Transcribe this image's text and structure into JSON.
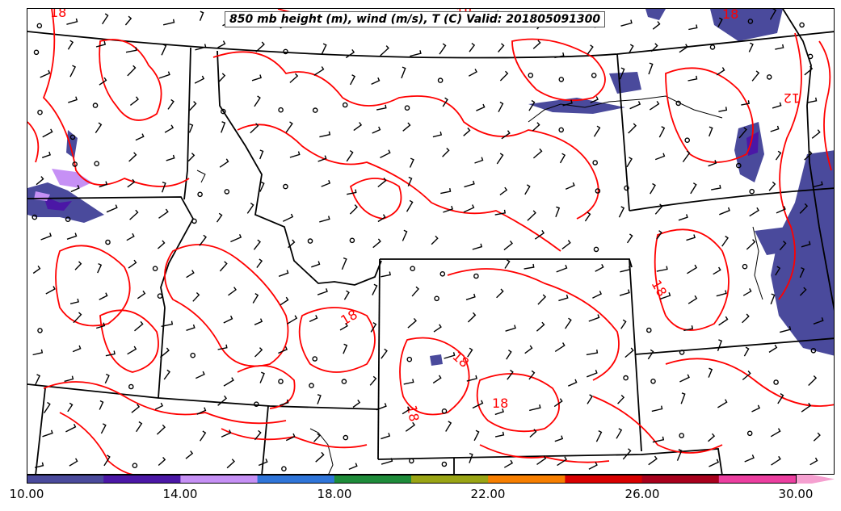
{
  "title": "850 mb height (m), wind (m/s), T (C) Valid: 201805091300",
  "temperature_labels": [
    "18",
    "18",
    "18",
    "18",
    "18",
    "18",
    "18",
    "18",
    "12"
  ],
  "colorbar": {
    "tick_labels": [
      "10.00",
      "14.00",
      "18.00",
      "22.00",
      "26.00",
      "30.00"
    ],
    "min": 10,
    "max": 31,
    "colors": [
      "#4a4a9c",
      "#4b17a6",
      "#c690f5",
      "#2f75d9",
      "#1e8c3a",
      "#9aa515",
      "#f77f00",
      "#d80000",
      "#a8001c",
      "#ec3fa0",
      "#f5a0d0"
    ]
  },
  "colors": {
    "contour": "#ff0000",
    "boundary": "#000000",
    "shading": "#4a4a9c"
  }
}
